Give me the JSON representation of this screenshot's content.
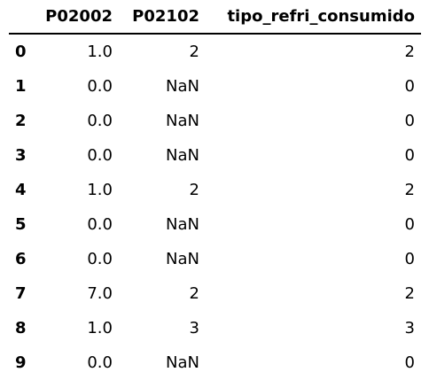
{
  "table": {
    "columns": [
      "",
      "P02002",
      "P02102",
      "tipo_refri_consumido"
    ],
    "rows": [
      {
        "index": "0",
        "P02002": "1.0",
        "P02102": "2",
        "tipo_refri_consumido": "2"
      },
      {
        "index": "1",
        "P02002": "0.0",
        "P02102": "NaN",
        "tipo_refri_consumido": "0"
      },
      {
        "index": "2",
        "P02002": "0.0",
        "P02102": "NaN",
        "tipo_refri_consumido": "0"
      },
      {
        "index": "3",
        "P02002": "0.0",
        "P02102": "NaN",
        "tipo_refri_consumido": "0"
      },
      {
        "index": "4",
        "P02002": "1.0",
        "P02102": "2",
        "tipo_refri_consumido": "2"
      },
      {
        "index": "5",
        "P02002": "0.0",
        "P02102": "NaN",
        "tipo_refri_consumido": "0"
      },
      {
        "index": "6",
        "P02002": "0.0",
        "P02102": "NaN",
        "tipo_refri_consumido": "0"
      },
      {
        "index": "7",
        "P02002": "7.0",
        "P02102": "2",
        "tipo_refri_consumido": "2"
      },
      {
        "index": "8",
        "P02002": "1.0",
        "P02102": "3",
        "tipo_refri_consumido": "3"
      },
      {
        "index": "9",
        "P02002": "0.0",
        "P02102": "NaN",
        "tipo_refri_consumido": "0"
      }
    ]
  }
}
